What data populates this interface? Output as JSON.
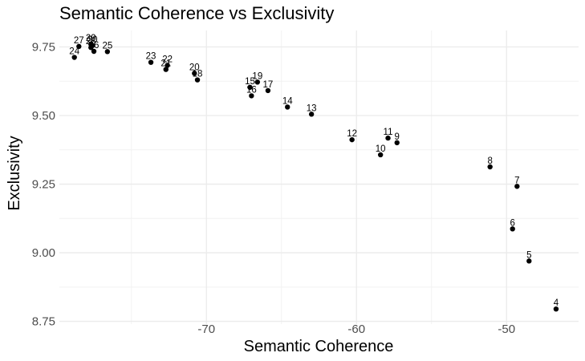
{
  "chart_data": {
    "type": "scatter",
    "title": "Semantic Coherence vs Exclusivity",
    "xlabel": "Semantic Coherence",
    "ylabel": "Exclusivity",
    "xlim": [
      -79.8,
      -45.2
    ],
    "ylim": [
      8.74,
      9.81
    ],
    "xticks": [
      -70,
      -60,
      -50
    ],
    "yticks": [
      8.75,
      9.0,
      9.25,
      9.5,
      9.75
    ],
    "ytick_labels": [
      "8.75",
      "9.00",
      "9.25",
      "9.50",
      "9.75"
    ],
    "xtick_labels": [
      "-70",
      "-60",
      "-50"
    ],
    "grid": true,
    "points": [
      {
        "label": "4",
        "x": -46.7,
        "y": 8.795
      },
      {
        "label": "5",
        "x": -48.5,
        "y": 8.97
      },
      {
        "label": "6",
        "x": -49.6,
        "y": 9.087
      },
      {
        "label": "7",
        "x": -49.3,
        "y": 9.242
      },
      {
        "label": "8",
        "x": -51.1,
        "y": 9.313
      },
      {
        "label": "9",
        "x": -57.3,
        "y": 9.401
      },
      {
        "label": "10",
        "x": -58.4,
        "y": 9.357
      },
      {
        "label": "11",
        "x": -57.9,
        "y": 9.418
      },
      {
        "label": "12",
        "x": -60.3,
        "y": 9.412
      },
      {
        "label": "13",
        "x": -63.0,
        "y": 9.505
      },
      {
        "label": "14",
        "x": -64.6,
        "y": 9.531
      },
      {
        "label": "15",
        "x": -67.1,
        "y": 9.603
      },
      {
        "label": "16",
        "x": -67.0,
        "y": 9.572
      },
      {
        "label": "17",
        "x": -65.9,
        "y": 9.591
      },
      {
        "label": "18",
        "x": -70.6,
        "y": 9.63
      },
      {
        "label": "19",
        "x": -66.6,
        "y": 9.622
      },
      {
        "label": "20",
        "x": -70.8,
        "y": 9.654
      },
      {
        "label": "21",
        "x": -72.7,
        "y": 9.668
      },
      {
        "label": "22",
        "x": -72.6,
        "y": 9.683
      },
      {
        "label": "23",
        "x": -73.7,
        "y": 9.694
      },
      {
        "label": "24",
        "x": -78.8,
        "y": 9.712
      },
      {
        "label": "25",
        "x": -76.6,
        "y": 9.733
      },
      {
        "label": "26",
        "x": -77.5,
        "y": 9.734
      },
      {
        "label": "27",
        "x": -78.5,
        "y": 9.752
      },
      {
        "label": "28",
        "x": -77.7,
        "y": 9.748
      },
      {
        "label": "29",
        "x": -77.7,
        "y": 9.76
      },
      {
        "label": "30",
        "x": -77.6,
        "y": 9.755
      }
    ]
  }
}
